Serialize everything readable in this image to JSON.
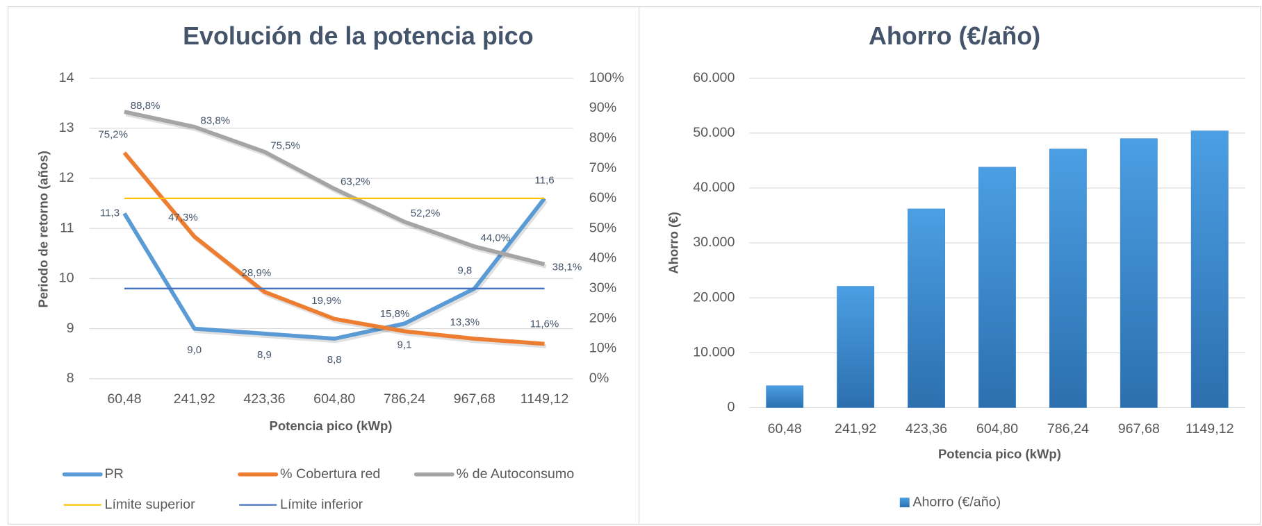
{
  "chart_data": [
    {
      "type": "line",
      "title": "Evolución de la potencia pico",
      "xlabel": "Potencia pico (kWp)",
      "ylabel": "Periodo de retorno (años)",
      "categories": [
        "60,48",
        "241,92",
        "423,36",
        "604,80",
        "786,24",
        "967,68",
        "1149,12"
      ],
      "ylim": [
        8,
        14
      ],
      "yticks": [
        8,
        9,
        10,
        11,
        12,
        13,
        14
      ],
      "y2lim": [
        0,
        100
      ],
      "y2ticks": [
        {
          "value": 0,
          "label": "0%"
        },
        {
          "value": 10,
          "label": "10%"
        },
        {
          "value": 20,
          "label": "20%"
        },
        {
          "value": 30,
          "label": "30%"
        },
        {
          "value": 40,
          "label": "40%"
        },
        {
          "value": 50,
          "label": "50%"
        },
        {
          "value": 60,
          "label": "60%"
        },
        {
          "value": 70,
          "label": "70%"
        },
        {
          "value": 80,
          "label": "80%"
        },
        {
          "value": 90,
          "label": "90%"
        },
        {
          "value": 100,
          "label": "100%"
        }
      ],
      "grid": true,
      "legend": "bottom",
      "series": [
        {
          "name": "PR",
          "color": "#5b9bd5",
          "values": [
            11.3,
            9.0,
            8.9,
            8.8,
            9.1,
            9.8,
            11.6
          ],
          "value_labels": [
            "11,3",
            "9,0",
            "8,9",
            "8,8",
            "9,1",
            "9,8",
            "11,6"
          ]
        },
        {
          "name": "% Cobertura red",
          "color": "#ed7d31",
          "axis": "y2",
          "values": [
            75.2,
            47.3,
            28.9,
            19.9,
            15.8,
            13.3,
            11.6
          ],
          "value_labels": [
            "75,2%",
            "47,3%",
            "28,9%",
            "19,9%",
            "15,8%",
            "13,3%",
            "11,6%"
          ]
        },
        {
          "name": "% de Autoconsumo",
          "color": "#a5a5a5",
          "axis": "y2",
          "values": [
            88.8,
            83.8,
            75.5,
            63.2,
            52.2,
            44.0,
            38.1
          ],
          "value_labels": [
            "88,8%",
            "83,8%",
            "75,5%",
            "63,2%",
            "52,2%",
            "44,0%",
            "38,1%"
          ]
        },
        {
          "name": "Límite superior",
          "color": "#ffc000",
          "values": [
            11.6,
            11.6,
            11.6,
            11.6,
            11.6,
            11.6,
            11.6
          ]
        },
        {
          "name": "Límite inferior",
          "color": "#4472c4",
          "values": [
            9.8,
            9.8,
            9.8,
            9.8,
            9.8,
            9.8,
            9.8
          ]
        }
      ]
    },
    {
      "type": "bar",
      "title": "Ahorro (€/año)",
      "xlabel": "Potencia pico (kWp)",
      "ylabel": "Ahorro (€)",
      "categories": [
        "60,48",
        "241,92",
        "423,36",
        "604,80",
        "786,24",
        "967,68",
        "1149,12"
      ],
      "ylim": [
        0,
        60000
      ],
      "yticks": [
        0,
        {
          "value": 10000,
          "label": "10.000"
        },
        {
          "value": 20000,
          "label": "20.000"
        },
        {
          "value": 30000,
          "label": "30.000"
        },
        {
          "value": 40000,
          "label": "40.000"
        },
        {
          "value": 50000,
          "label": "50.000"
        },
        {
          "value": 60000,
          "label": "60.000"
        }
      ],
      "grid": true,
      "legend": "bottom",
      "series": [
        {
          "name": "Ahorro (€/año)",
          "color": "#3a87d0",
          "values": [
            4000,
            22100,
            36200,
            43800,
            47100,
            49000,
            50400
          ]
        }
      ]
    }
  ]
}
